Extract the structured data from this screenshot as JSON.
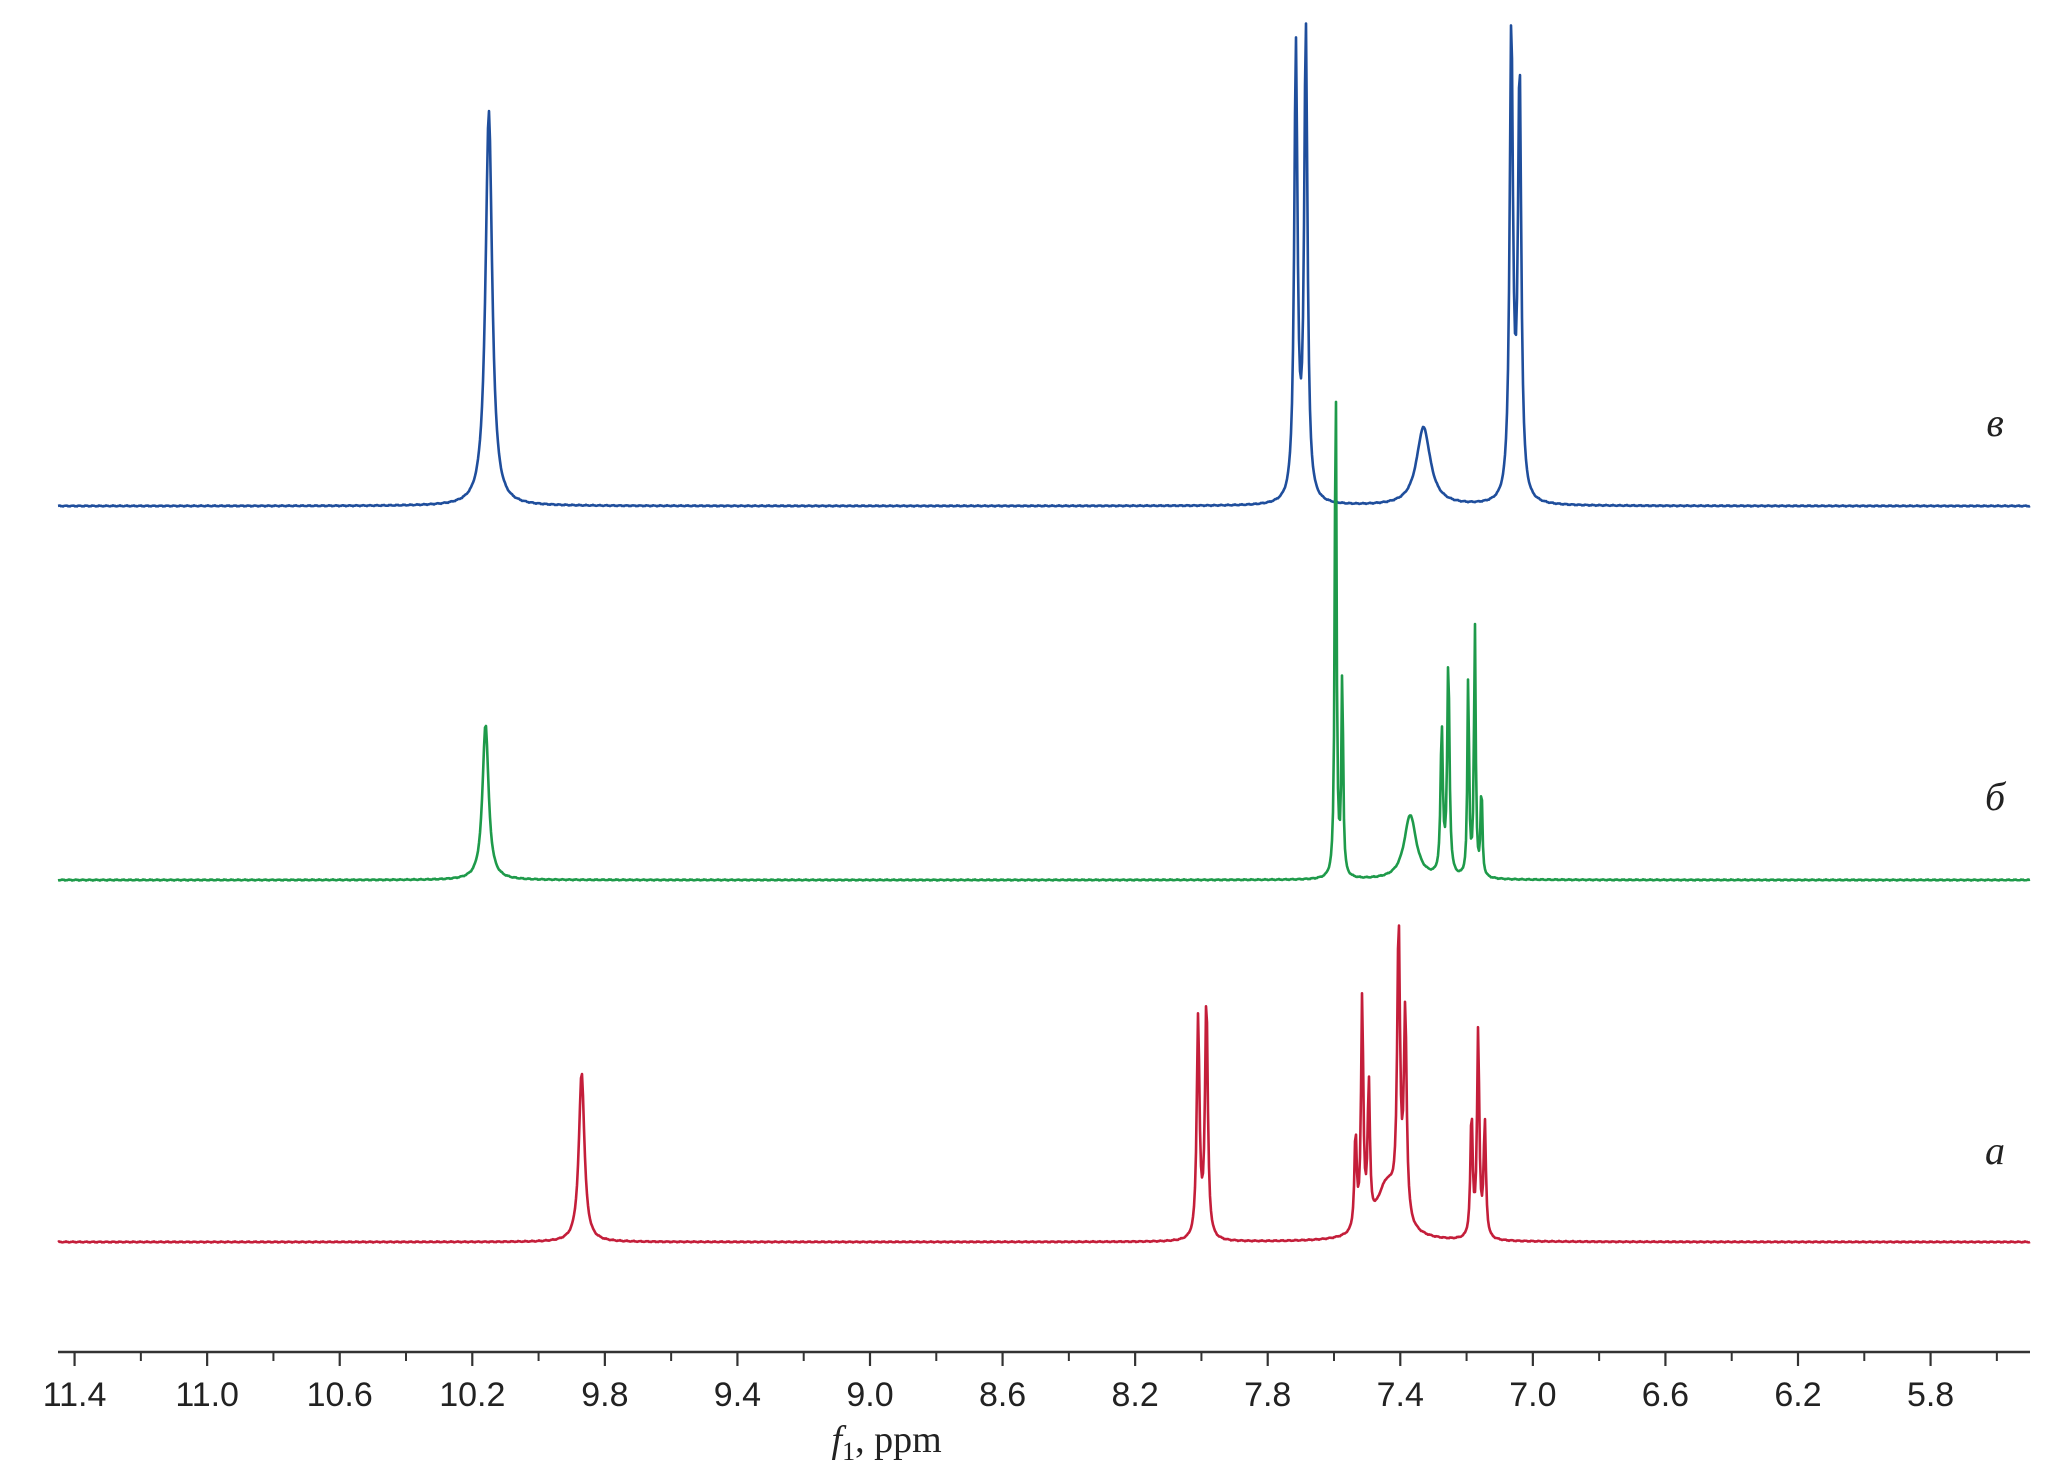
{
  "chart_data": {
    "type": "line",
    "title": "",
    "xlabel": {
      "symbol": "f",
      "subscript": "1",
      "unit": ", ppm"
    },
    "ylabel": "",
    "xlim": [
      11.45,
      5.5
    ],
    "x_reversed": true,
    "x_ticks_major": [
      "11.4",
      "11.0",
      "10.6",
      "10.2",
      "9.8",
      "9.4",
      "9.0",
      "8.6",
      "8.2",
      "7.8",
      "7.4",
      "7.0",
      "6.6",
      "6.2",
      "5.8"
    ],
    "grid": false,
    "legend": "none",
    "series": [
      {
        "label": "в",
        "color": "#1f4e9c",
        "stack_level": 2,
        "peaks": [
          {
            "x": 10.15,
            "h": 0.86,
            "w": 0.012
          },
          {
            "x": 7.715,
            "h": 0.98,
            "w": 0.006
          },
          {
            "x": 7.685,
            "h": 1.02,
            "w": 0.006
          },
          {
            "x": 7.33,
            "h": 0.17,
            "w": 0.025
          },
          {
            "x": 7.065,
            "h": 1.02,
            "w": 0.006
          },
          {
            "x": 7.04,
            "h": 0.92,
            "w": 0.006
          }
        ]
      },
      {
        "label": "б",
        "color": "#1e9a4a",
        "stack_level": 1,
        "peaks": [
          {
            "x": 10.16,
            "h": 0.34,
            "w": 0.011
          },
          {
            "x": 7.595,
            "h": 1.15,
            "w": 0.003
          },
          {
            "x": 7.575,
            "h": 0.45,
            "w": 0.003
          },
          {
            "x": 7.37,
            "h": 0.14,
            "w": 0.022
          },
          {
            "x": 7.275,
            "h": 0.32,
            "w": 0.004
          },
          {
            "x": 7.255,
            "h": 0.47,
            "w": 0.004
          },
          {
            "x": 7.195,
            "h": 0.44,
            "w": 0.003
          },
          {
            "x": 7.175,
            "h": 0.55,
            "w": 0.003
          },
          {
            "x": 7.155,
            "h": 0.2,
            "w": 0.003
          }
        ]
      },
      {
        "label": "а",
        "color": "#c41e3a",
        "stack_level": 0,
        "peaks": [
          {
            "x": 9.87,
            "h": 0.37,
            "w": 0.01
          },
          {
            "x": 8.01,
            "h": 0.48,
            "w": 0.005
          },
          {
            "x": 7.985,
            "h": 0.52,
            "w": 0.005
          },
          {
            "x": 7.535,
            "h": 0.21,
            "w": 0.004
          },
          {
            "x": 7.515,
            "h": 0.5,
            "w": 0.004
          },
          {
            "x": 7.495,
            "h": 0.3,
            "w": 0.004
          },
          {
            "x": 7.44,
            "h": 0.12,
            "w": 0.04
          },
          {
            "x": 7.405,
            "h": 0.62,
            "w": 0.005
          },
          {
            "x": 7.385,
            "h": 0.45,
            "w": 0.005
          },
          {
            "x": 7.185,
            "h": 0.27,
            "w": 0.004
          },
          {
            "x": 7.165,
            "h": 0.45,
            "w": 0.004
          },
          {
            "x": 7.145,
            "h": 0.25,
            "w": 0.004
          }
        ]
      }
    ]
  }
}
